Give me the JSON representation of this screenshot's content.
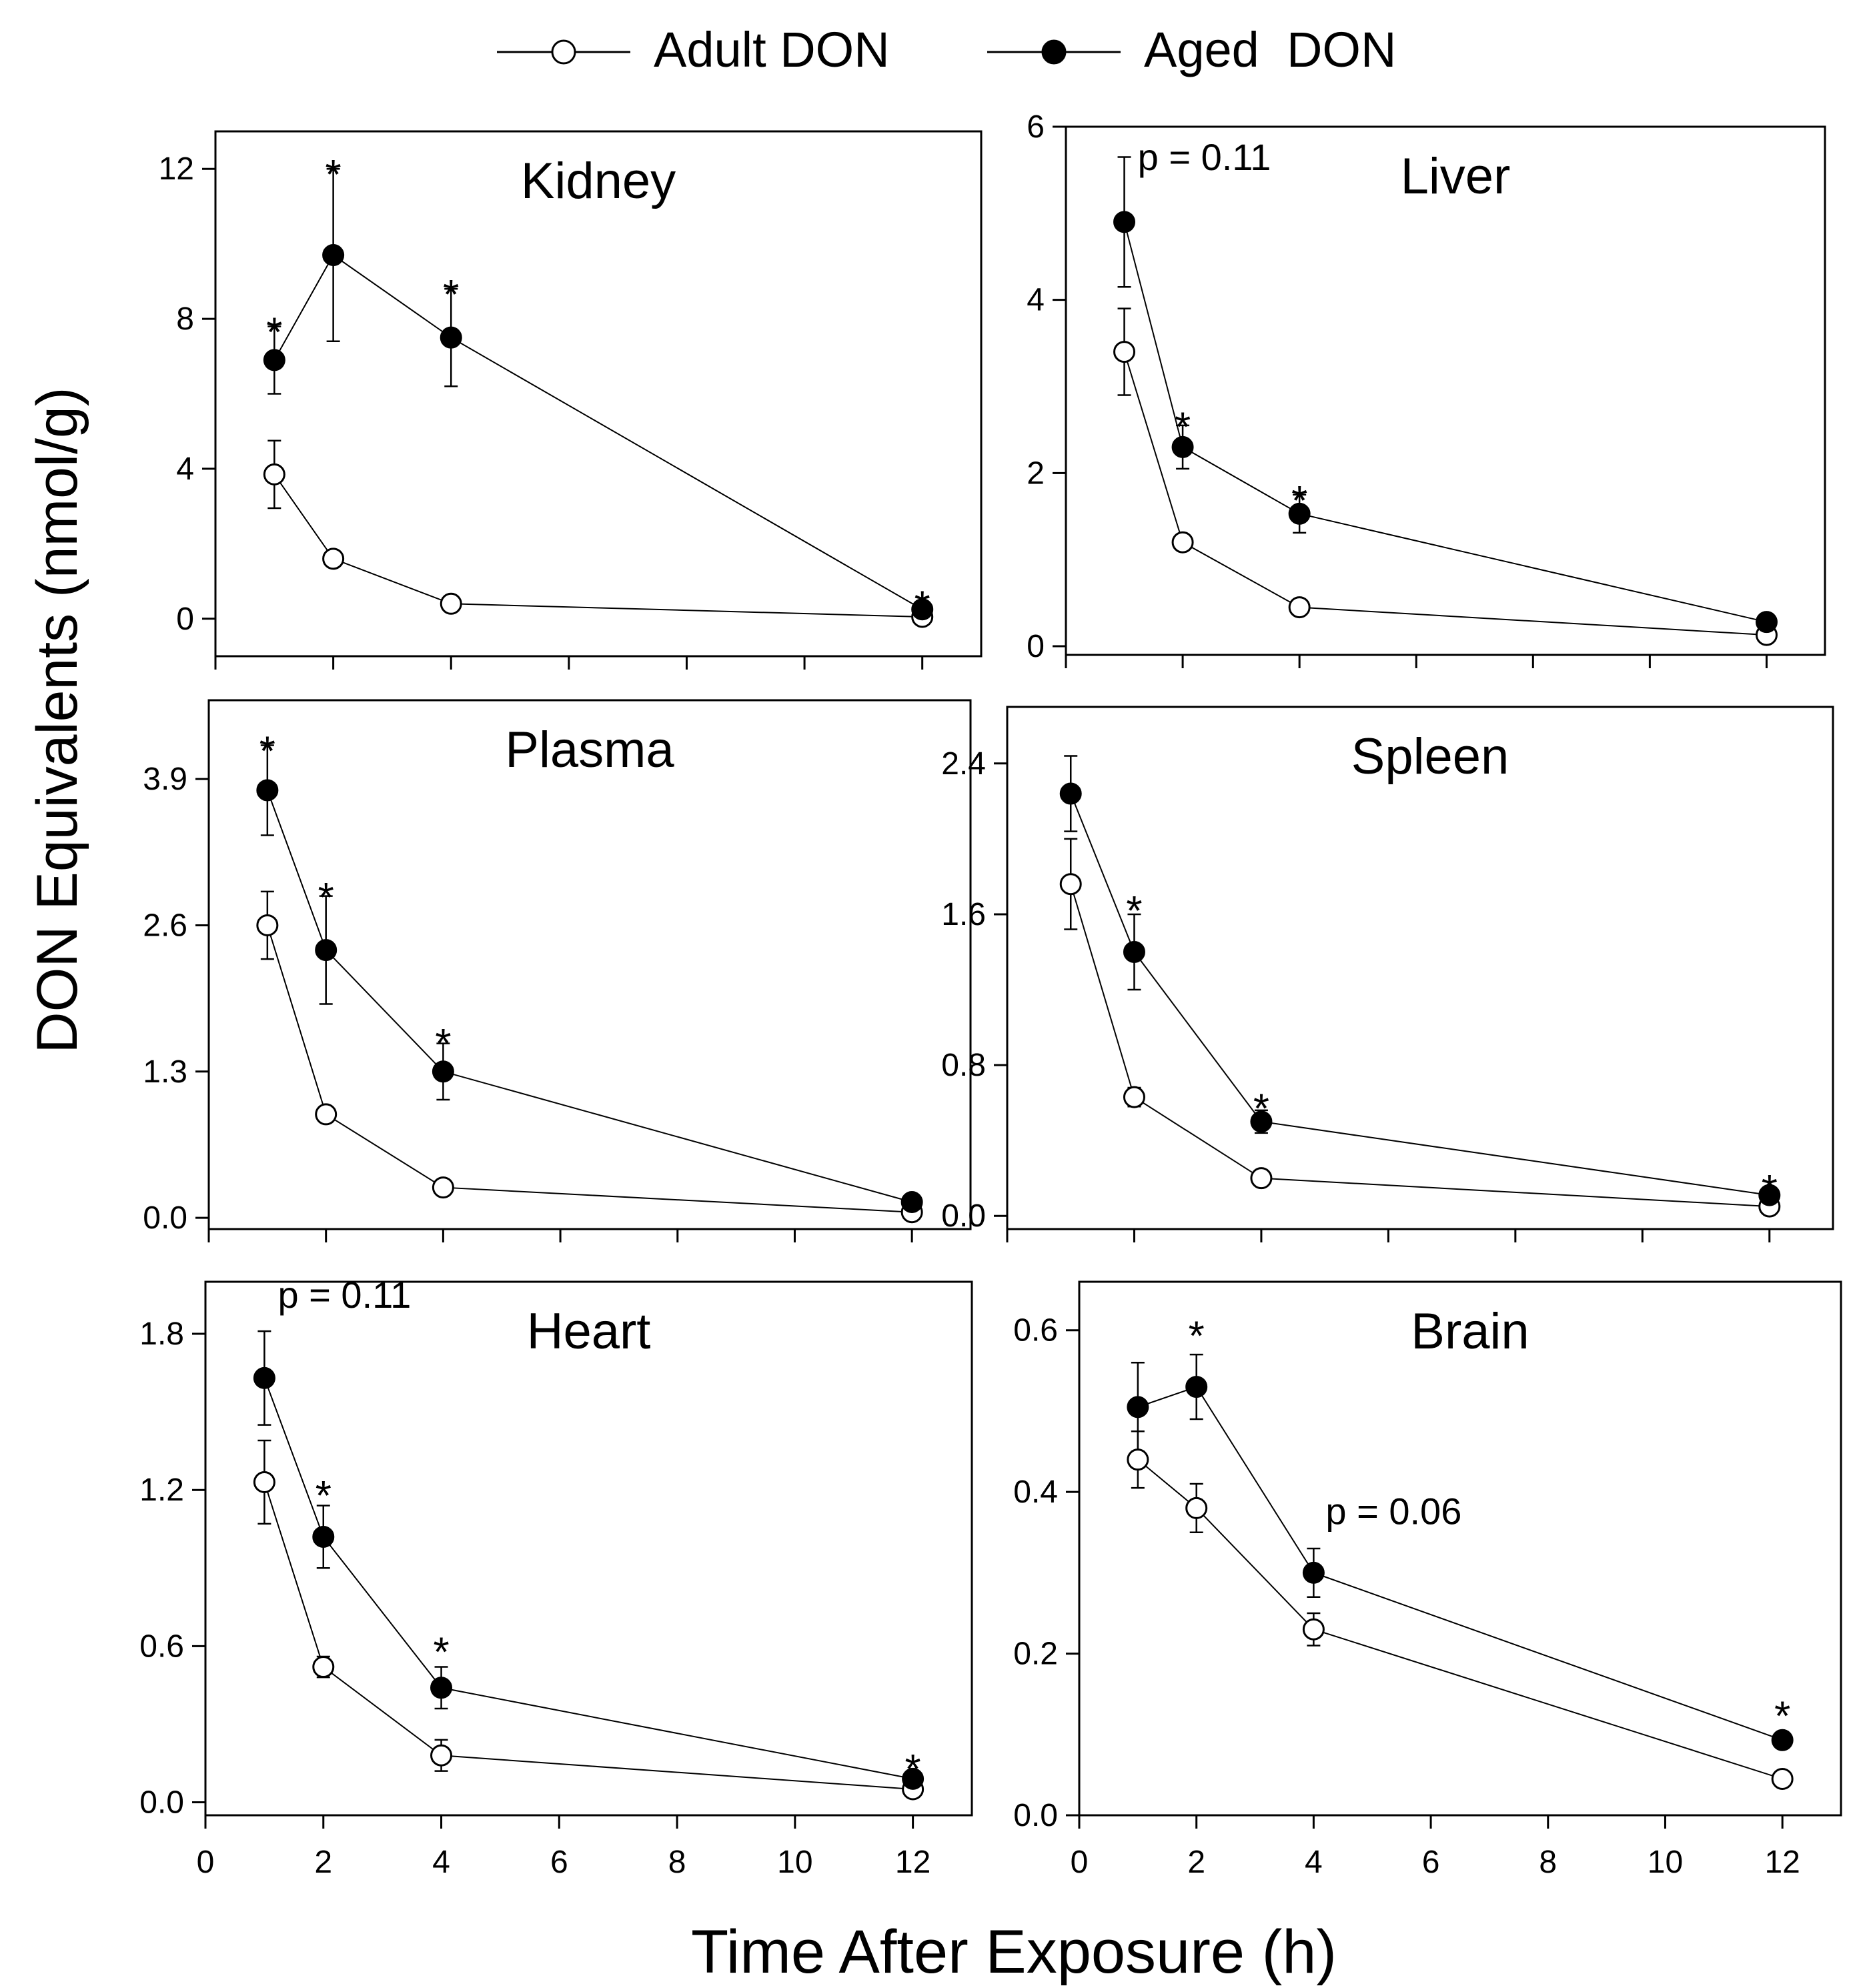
{
  "legend": {
    "placement": "top-center",
    "adult_label": "Adult DON",
    "aged_label": "Aged  DON"
  },
  "ylabel": "DON Equivalents (nmol/g)",
  "xlabel": "Time After Exposure (h)",
  "x_tick_labels": [
    "0",
    "2",
    "4",
    "6",
    "8",
    "10",
    "12"
  ],
  "chart_data": [
    {
      "type": "line",
      "title": "Kidney",
      "x": [
        1,
        2,
        4,
        12
      ],
      "xlim": [
        0,
        13
      ],
      "ylim": [
        -1,
        13
      ],
      "yticks": [
        0,
        4,
        8,
        12
      ],
      "ytick_labels": [
        "0",
        "4",
        "8",
        "12"
      ],
      "series": [
        {
          "name": "Adult DON",
          "values": [
            3.85,
            1.6,
            0.4,
            0.05
          ],
          "errors": [
            0.9,
            0.15,
            0.1,
            0.05
          ]
        },
        {
          "name": "Aged  DON",
          "values": [
            6.9,
            9.7,
            7.5,
            0.25
          ],
          "errors": [
            0.9,
            2.3,
            1.3,
            0.1
          ]
        }
      ],
      "annotations": [
        {
          "x": 1,
          "y": 7.8,
          "text": "*"
        },
        {
          "x": 2,
          "y": 12.0,
          "text": "*"
        },
        {
          "x": 4,
          "y": 8.8,
          "text": "*"
        },
        {
          "x": 12,
          "y": 0.5,
          "text": "*"
        }
      ]
    },
    {
      "type": "line",
      "title": "Liver",
      "x": [
        1,
        2,
        4,
        12
      ],
      "xlim": [
        0,
        13
      ],
      "ylim": [
        -0.1,
        6
      ],
      "yticks": [
        0,
        2,
        4,
        6
      ],
      "ytick_labels": [
        "0",
        "2",
        "4",
        "6"
      ],
      "series": [
        {
          "name": "Adult DON",
          "values": [
            3.4,
            1.2,
            0.45,
            0.13
          ],
          "errors": [
            0.5,
            0.07,
            0.05,
            0.05
          ]
        },
        {
          "name": "Aged  DON",
          "values": [
            4.9,
            2.3,
            1.53,
            0.28
          ],
          "errors": [
            0.75,
            0.25,
            0.22,
            0.08
          ]
        }
      ],
      "annotations": [
        {
          "x": 1,
          "y": 5.5,
          "text": "p = 0.11"
        },
        {
          "x": 2,
          "y": 2.6,
          "text": "*"
        },
        {
          "x": 4,
          "y": 1.75,
          "text": "*"
        }
      ]
    },
    {
      "type": "line",
      "title": "Plasma",
      "x": [
        1,
        2,
        4,
        12
      ],
      "xlim": [
        0,
        13
      ],
      "ylim": [
        -0.1,
        4.6
      ],
      "yticks": [
        0,
        1.3,
        2.6,
        3.9
      ],
      "ytick_labels": [
        "0.0",
        "1.3",
        "2.6",
        "3.9"
      ],
      "series": [
        {
          "name": "Adult DON",
          "values": [
            2.6,
            0.92,
            0.27,
            0.05
          ],
          "errors": [
            0.3,
            0.05,
            0.04,
            0.03
          ]
        },
        {
          "name": "Aged  DON",
          "values": [
            3.8,
            2.38,
            1.3,
            0.14
          ],
          "errors": [
            0.4,
            0.48,
            0.25,
            0.05
          ]
        }
      ],
      "annotations": [
        {
          "x": 1,
          "y": 4.2,
          "text": "*"
        },
        {
          "x": 2,
          "y": 2.9,
          "text": "*"
        },
        {
          "x": 4,
          "y": 1.6,
          "text": "*"
        }
      ]
    },
    {
      "type": "line",
      "title": "Spleen",
      "x": [
        1,
        2,
        4,
        12
      ],
      "xlim": [
        0,
        13
      ],
      "ylim": [
        -0.07,
        2.7
      ],
      "yticks": [
        0,
        0.8,
        1.6,
        2.4
      ],
      "ytick_labels": [
        "0.0",
        "0.8",
        "1.6",
        "2.4"
      ],
      "series": [
        {
          "name": "Adult DON",
          "values": [
            1.76,
            0.63,
            0.2,
            0.05
          ],
          "errors": [
            0.24,
            0.05,
            0.03,
            0.02
          ]
        },
        {
          "name": "Aged  DON",
          "values": [
            2.24,
            1.4,
            0.5,
            0.11
          ],
          "errors": [
            0.2,
            0.2,
            0.06,
            0.02
          ]
        }
      ],
      "annotations": [
        {
          "x": 2,
          "y": 1.65,
          "text": "*"
        },
        {
          "x": 4,
          "y": 0.6,
          "text": "*"
        },
        {
          "x": 12,
          "y": 0.17,
          "text": "*"
        }
      ]
    },
    {
      "type": "line",
      "title": "Heart",
      "x": [
        1,
        2,
        4,
        12
      ],
      "xlim": [
        0,
        13
      ],
      "ylim": [
        -0.05,
        2.0
      ],
      "yticks": [
        0,
        0.6,
        1.2,
        1.8
      ],
      "ytick_labels": [
        "0.0",
        "0.6",
        "1.2",
        "1.8"
      ],
      "series": [
        {
          "name": "Adult DON",
          "values": [
            1.23,
            0.52,
            0.18,
            0.05
          ],
          "errors": [
            0.16,
            0.04,
            0.06,
            0.02
          ]
        },
        {
          "name": "Aged  DON",
          "values": [
            1.63,
            1.02,
            0.44,
            0.09
          ],
          "errors": [
            0.18,
            0.12,
            0.08,
            0.02
          ]
        }
      ],
      "annotations": [
        {
          "x": 1,
          "y": 1.9,
          "text": "p = 0.11"
        },
        {
          "x": 2,
          "y": 1.2,
          "text": "*"
        },
        {
          "x": 4,
          "y": 0.6,
          "text": "*"
        },
        {
          "x": 12,
          "y": 0.15,
          "text": "*"
        }
      ]
    },
    {
      "type": "line",
      "title": "Brain",
      "x": [
        1,
        2,
        4,
        12
      ],
      "xlim": [
        0,
        13
      ],
      "ylim": [
        0,
        0.66
      ],
      "yticks": [
        0,
        0.2,
        0.4,
        0.6
      ],
      "ytick_labels": [
        "0.0",
        "0.2",
        "0.4",
        "0.6"
      ],
      "series": [
        {
          "name": "Adult DON",
          "values": [
            0.44,
            0.38,
            0.23,
            0.045
          ],
          "errors": [
            0.035,
            0.03,
            0.02,
            0.005
          ]
        },
        {
          "name": "Aged  DON",
          "values": [
            0.505,
            0.53,
            0.3,
            0.093
          ],
          "errors": [
            0.055,
            0.04,
            0.03,
            0.01
          ]
        }
      ],
      "annotations": [
        {
          "x": 2,
          "y": 0.6,
          "text": "*"
        },
        {
          "x": 4,
          "y": 0.36,
          "text": "p = 0.06"
        },
        {
          "x": 12,
          "y": 0.13,
          "text": "*"
        }
      ]
    }
  ]
}
